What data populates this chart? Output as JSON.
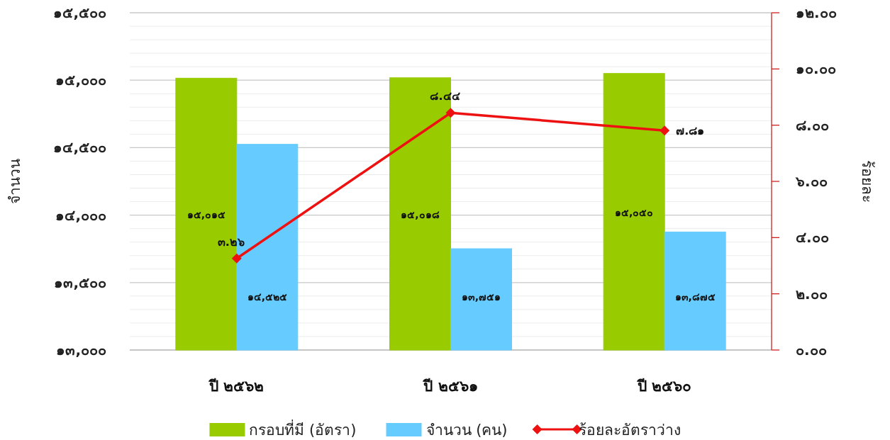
{
  "chart_data": {
    "type": "bar",
    "categories": [
      "ปี ๒๕๖๒",
      "ปี ๒๕๖๑",
      "ปี ๒๕๖๐"
    ],
    "ylabel": "จำนวน",
    "y2label": "ร้อยละ",
    "ylim": [
      13000,
      15500
    ],
    "yticks": [
      {
        "value": 13000,
        "label": "๑๓,๐๐๐"
      },
      {
        "value": 13100,
        "label": null
      },
      {
        "value": 13200,
        "label": null
      },
      {
        "value": 13300,
        "label": null
      },
      {
        "value": 13400,
        "label": null
      },
      {
        "value": 13500,
        "label": "๑๓,๕๐๐"
      },
      {
        "value": 13600,
        "label": null
      },
      {
        "value": 13700,
        "label": null
      },
      {
        "value": 13800,
        "label": null
      },
      {
        "value": 13900,
        "label": null
      },
      {
        "value": 14000,
        "label": "๑๔,๐๐๐"
      },
      {
        "value": 14100,
        "label": null
      },
      {
        "value": 14200,
        "label": null
      },
      {
        "value": 14300,
        "label": null
      },
      {
        "value": 14400,
        "label": null
      },
      {
        "value": 14500,
        "label": "๑๔,๕๐๐"
      },
      {
        "value": 14600,
        "label": null
      },
      {
        "value": 14700,
        "label": null
      },
      {
        "value": 14800,
        "label": null
      },
      {
        "value": 14900,
        "label": null
      },
      {
        "value": 15000,
        "label": "๑๕,๐๐๐"
      },
      {
        "value": 15100,
        "label": null
      },
      {
        "value": 15200,
        "label": null
      },
      {
        "value": 15300,
        "label": null
      },
      {
        "value": 15400,
        "label": null
      },
      {
        "value": 15500,
        "label": "๑๕,๕๐๐"
      }
    ],
    "y2lim": [
      0,
      12
    ],
    "y2ticks": [
      {
        "value": 0,
        "label": "๐.๐๐"
      },
      {
        "value": 2,
        "label": "๒.๐๐"
      },
      {
        "value": 4,
        "label": "๔.๐๐"
      },
      {
        "value": 6,
        "label": "๖.๐๐"
      },
      {
        "value": 8,
        "label": "๘.๐๐"
      },
      {
        "value": 10,
        "label": "๑๐.๐๐"
      },
      {
        "value": 12,
        "label": "๑๒.๐๐"
      }
    ],
    "grid": "y",
    "legend": "bottom",
    "series": [
      {
        "name": "กรอบที่มี (อัตรา)",
        "color": "#99cc00",
        "values": [
          15015,
          15018,
          15050
        ],
        "value_labels": [
          "๑๕,๐๑๕",
          "๑๕,๐๑๘",
          "๑๕,๐๕๐"
        ]
      },
      {
        "name": "จำนวน (คน)",
        "color": "#66ccff",
        "values": [
          14525,
          13751,
          13875
        ],
        "value_labels": [
          "๑๔,๕๒๕",
          "๑๓,๗๕๑",
          "๑๓,๘๗๕"
        ]
      },
      {
        "name": "ร้อยละอัตราว่าง",
        "type": "line",
        "axis": "y2",
        "color": "#ee1111",
        "marker": "diamond",
        "line_style": "solid",
        "values": [
          3.26,
          8.44,
          7.81
        ],
        "value_labels": [
          "๓.๒๖",
          "๘.๔๔",
          "๗.๘๑"
        ]
      }
    ]
  }
}
